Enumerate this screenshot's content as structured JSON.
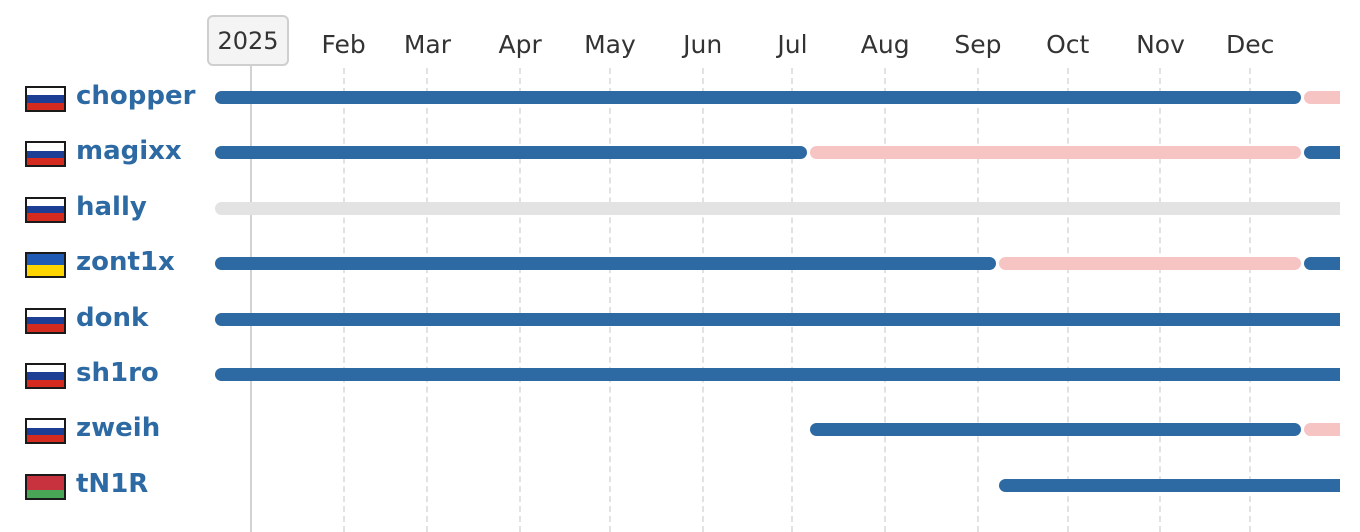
{
  "chart_data": {
    "type": "timeline",
    "title": "",
    "year_label": "2025",
    "x_range": [
      "2024-12-20",
      "2025-12-31"
    ],
    "month_labels": [
      {
        "label": "Feb",
        "date": "2025-02-01"
      },
      {
        "label": "Mar",
        "date": "2025-03-01"
      },
      {
        "label": "Apr",
        "date": "2025-04-01"
      },
      {
        "label": "May",
        "date": "2025-05-01"
      },
      {
        "label": "Jun",
        "date": "2025-06-01"
      },
      {
        "label": "Jul",
        "date": "2025-07-01"
      },
      {
        "label": "Aug",
        "date": "2025-08-01"
      },
      {
        "label": "Sep",
        "date": "2025-09-01"
      },
      {
        "label": "Oct",
        "date": "2025-10-01"
      },
      {
        "label": "Nov",
        "date": "2025-11-01"
      },
      {
        "label": "Dec",
        "date": "2025-12-01"
      }
    ],
    "year_marker_date": "2025-01-01",
    "grid": true,
    "players": [
      {
        "name": "chopper",
        "country": "ru",
        "segments": [
          {
            "status": "active",
            "start": "2024-12-20",
            "end": "2025-12-18"
          },
          {
            "status": "benched",
            "start": "2025-12-19",
            "end": "2025-12-31"
          }
        ]
      },
      {
        "name": "magixx",
        "country": "ru",
        "segments": [
          {
            "status": "active",
            "start": "2024-12-20",
            "end": "2025-07-06"
          },
          {
            "status": "benched",
            "start": "2025-07-07",
            "end": "2025-12-18"
          },
          {
            "status": "active",
            "start": "2025-12-19",
            "end": "2025-12-31"
          }
        ]
      },
      {
        "name": "hally",
        "country": "ru",
        "segments": [
          {
            "status": "inactive",
            "start": "2024-12-20",
            "end": "2025-12-31"
          }
        ]
      },
      {
        "name": "zont1x",
        "country": "ua",
        "segments": [
          {
            "status": "active",
            "start": "2024-12-20",
            "end": "2025-09-07"
          },
          {
            "status": "benched",
            "start": "2025-09-08",
            "end": "2025-12-18"
          },
          {
            "status": "active",
            "start": "2025-12-19",
            "end": "2025-12-31"
          }
        ]
      },
      {
        "name": "donk",
        "country": "ru",
        "segments": [
          {
            "status": "active",
            "start": "2024-12-20",
            "end": "2025-12-31"
          }
        ]
      },
      {
        "name": "sh1ro",
        "country": "ru",
        "segments": [
          {
            "status": "active",
            "start": "2024-12-20",
            "end": "2025-12-31"
          }
        ]
      },
      {
        "name": "zweih",
        "country": "ru",
        "segments": [
          {
            "status": "active",
            "start": "2025-07-07",
            "end": "2025-12-18"
          },
          {
            "status": "benched",
            "start": "2025-12-19",
            "end": "2025-12-31"
          }
        ]
      },
      {
        "name": "tN1R",
        "country": "by",
        "segments": [
          {
            "status": "active",
            "start": "2025-09-08",
            "end": "2025-12-31"
          }
        ]
      }
    ]
  },
  "colors": {
    "active": "#2d6aa3",
    "benched": "#f7c4c4",
    "inactive": "#e3e3e3",
    "name": "#2d6aa3",
    "flags": {
      "ru": [
        "#ffffff",
        "#1c3f95",
        "#d52b1e"
      ],
      "ua": [
        "#1f5bb5",
        "#ffd500"
      ],
      "by": [
        "#c8313e",
        "#c8313e",
        "#4aa657"
      ]
    }
  }
}
